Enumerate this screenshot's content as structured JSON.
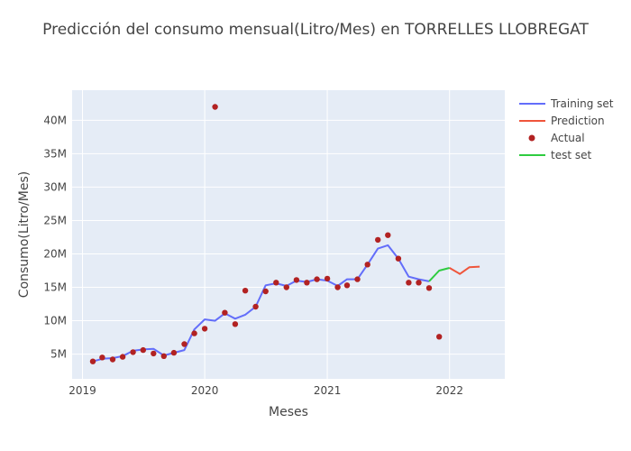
{
  "chart_data": {
    "type": "line",
    "title": "Predicción del consumo mensual(Litro/Mes) en TORRELLES LLOBREGAT",
    "xlabel": "Meses",
    "ylabel": "Consumo(Litro/Mes)",
    "x_ticks": [
      {
        "label": "2019",
        "value": "2019-01-01"
      },
      {
        "label": "2020",
        "value": "2020-01-01"
      },
      {
        "label": "2021",
        "value": "2021-01-01"
      },
      {
        "label": "2022",
        "value": "2022-01-01"
      }
    ],
    "y_ticks": [
      {
        "label": "5M",
        "value": 5000000
      },
      {
        "label": "10M",
        "value": 10000000
      },
      {
        "label": "15M",
        "value": 15000000
      },
      {
        "label": "20M",
        "value": 20000000
      },
      {
        "label": "25M",
        "value": 25000000
      },
      {
        "label": "30M",
        "value": 30000000
      },
      {
        "label": "35M",
        "value": 35000000
      },
      {
        "label": "40M",
        "value": 40000000
      }
    ],
    "xlim": [
      "2018-12-01",
      "2022-06-15"
    ],
    "ylim": [
      1300000,
      44500000
    ],
    "grid": true,
    "legend_position": "right",
    "series": [
      {
        "name": "Training set",
        "type": "line",
        "color": "#636efa",
        "x": [
          "2019-02-01",
          "2019-03-01",
          "2019-04-01",
          "2019-05-01",
          "2019-06-01",
          "2019-07-01",
          "2019-08-01",
          "2019-09-01",
          "2019-10-01",
          "2019-11-01",
          "2019-12-01",
          "2020-01-01",
          "2020-02-01",
          "2020-03-01",
          "2020-04-01",
          "2020-05-01",
          "2020-06-01",
          "2020-07-01",
          "2020-08-01",
          "2020-09-01",
          "2020-10-01",
          "2020-11-01",
          "2020-12-01",
          "2021-01-01",
          "2021-02-01",
          "2021-03-01",
          "2021-04-01",
          "2021-05-01",
          "2021-06-01",
          "2021-07-01",
          "2021-08-01",
          "2021-09-01",
          "2021-10-01",
          "2021-11-01"
        ],
        "y": [
          3900000,
          4300000,
          4400000,
          4700000,
          5500000,
          5700000,
          5800000,
          4800000,
          5200000,
          5600000,
          8700000,
          10200000,
          10000000,
          11100000,
          10300000,
          10900000,
          12100000,
          15300000,
          15600000,
          15200000,
          16000000,
          15800000,
          16200000,
          16000000,
          15200000,
          16200000,
          16200000,
          18400000,
          20800000,
          21300000,
          19300000,
          16600000,
          16200000,
          15900000
        ]
      },
      {
        "name": "Prediction",
        "type": "line",
        "color": "#ef553b",
        "x": [
          "2022-01-01",
          "2022-02-01",
          "2022-03-01",
          "2022-04-01"
        ],
        "y": [
          17900000,
          17000000,
          18000000,
          18100000
        ]
      },
      {
        "name": "Actual",
        "type": "scatter",
        "color": "#b22222",
        "x": [
          "2019-02-01",
          "2019-03-01",
          "2019-04-01",
          "2019-05-01",
          "2019-06-01",
          "2019-07-01",
          "2019-08-01",
          "2019-09-01",
          "2019-10-01",
          "2019-11-01",
          "2019-12-01",
          "2020-01-01",
          "2020-02-01",
          "2020-03-01",
          "2020-04-01",
          "2020-05-01",
          "2020-06-01",
          "2020-07-01",
          "2020-08-01",
          "2020-09-01",
          "2020-10-01",
          "2020-11-01",
          "2020-12-01",
          "2021-01-01",
          "2021-02-01",
          "2021-03-01",
          "2021-04-01",
          "2021-05-01",
          "2021-06-01",
          "2021-07-01",
          "2021-08-01",
          "2021-09-01",
          "2021-10-01",
          "2021-11-01",
          "2021-12-01"
        ],
        "y": [
          3900000,
          4500000,
          4200000,
          4600000,
          5300000,
          5600000,
          5100000,
          4700000,
          5200000,
          6500000,
          8100000,
          8800000,
          42000000,
          11200000,
          9500000,
          14500000,
          12100000,
          14400000,
          15700000,
          15000000,
          16100000,
          15700000,
          16200000,
          16300000,
          15000000,
          15300000,
          16200000,
          18400000,
          22100000,
          22800000,
          19300000,
          15700000,
          15700000,
          14900000,
          7600000
        ]
      },
      {
        "name": "test set",
        "type": "line",
        "color": "#2ecc40",
        "x": [
          "2021-11-01",
          "2021-12-01",
          "2022-01-01"
        ],
        "y": [
          15900000,
          17500000,
          17900000
        ]
      }
    ]
  }
}
